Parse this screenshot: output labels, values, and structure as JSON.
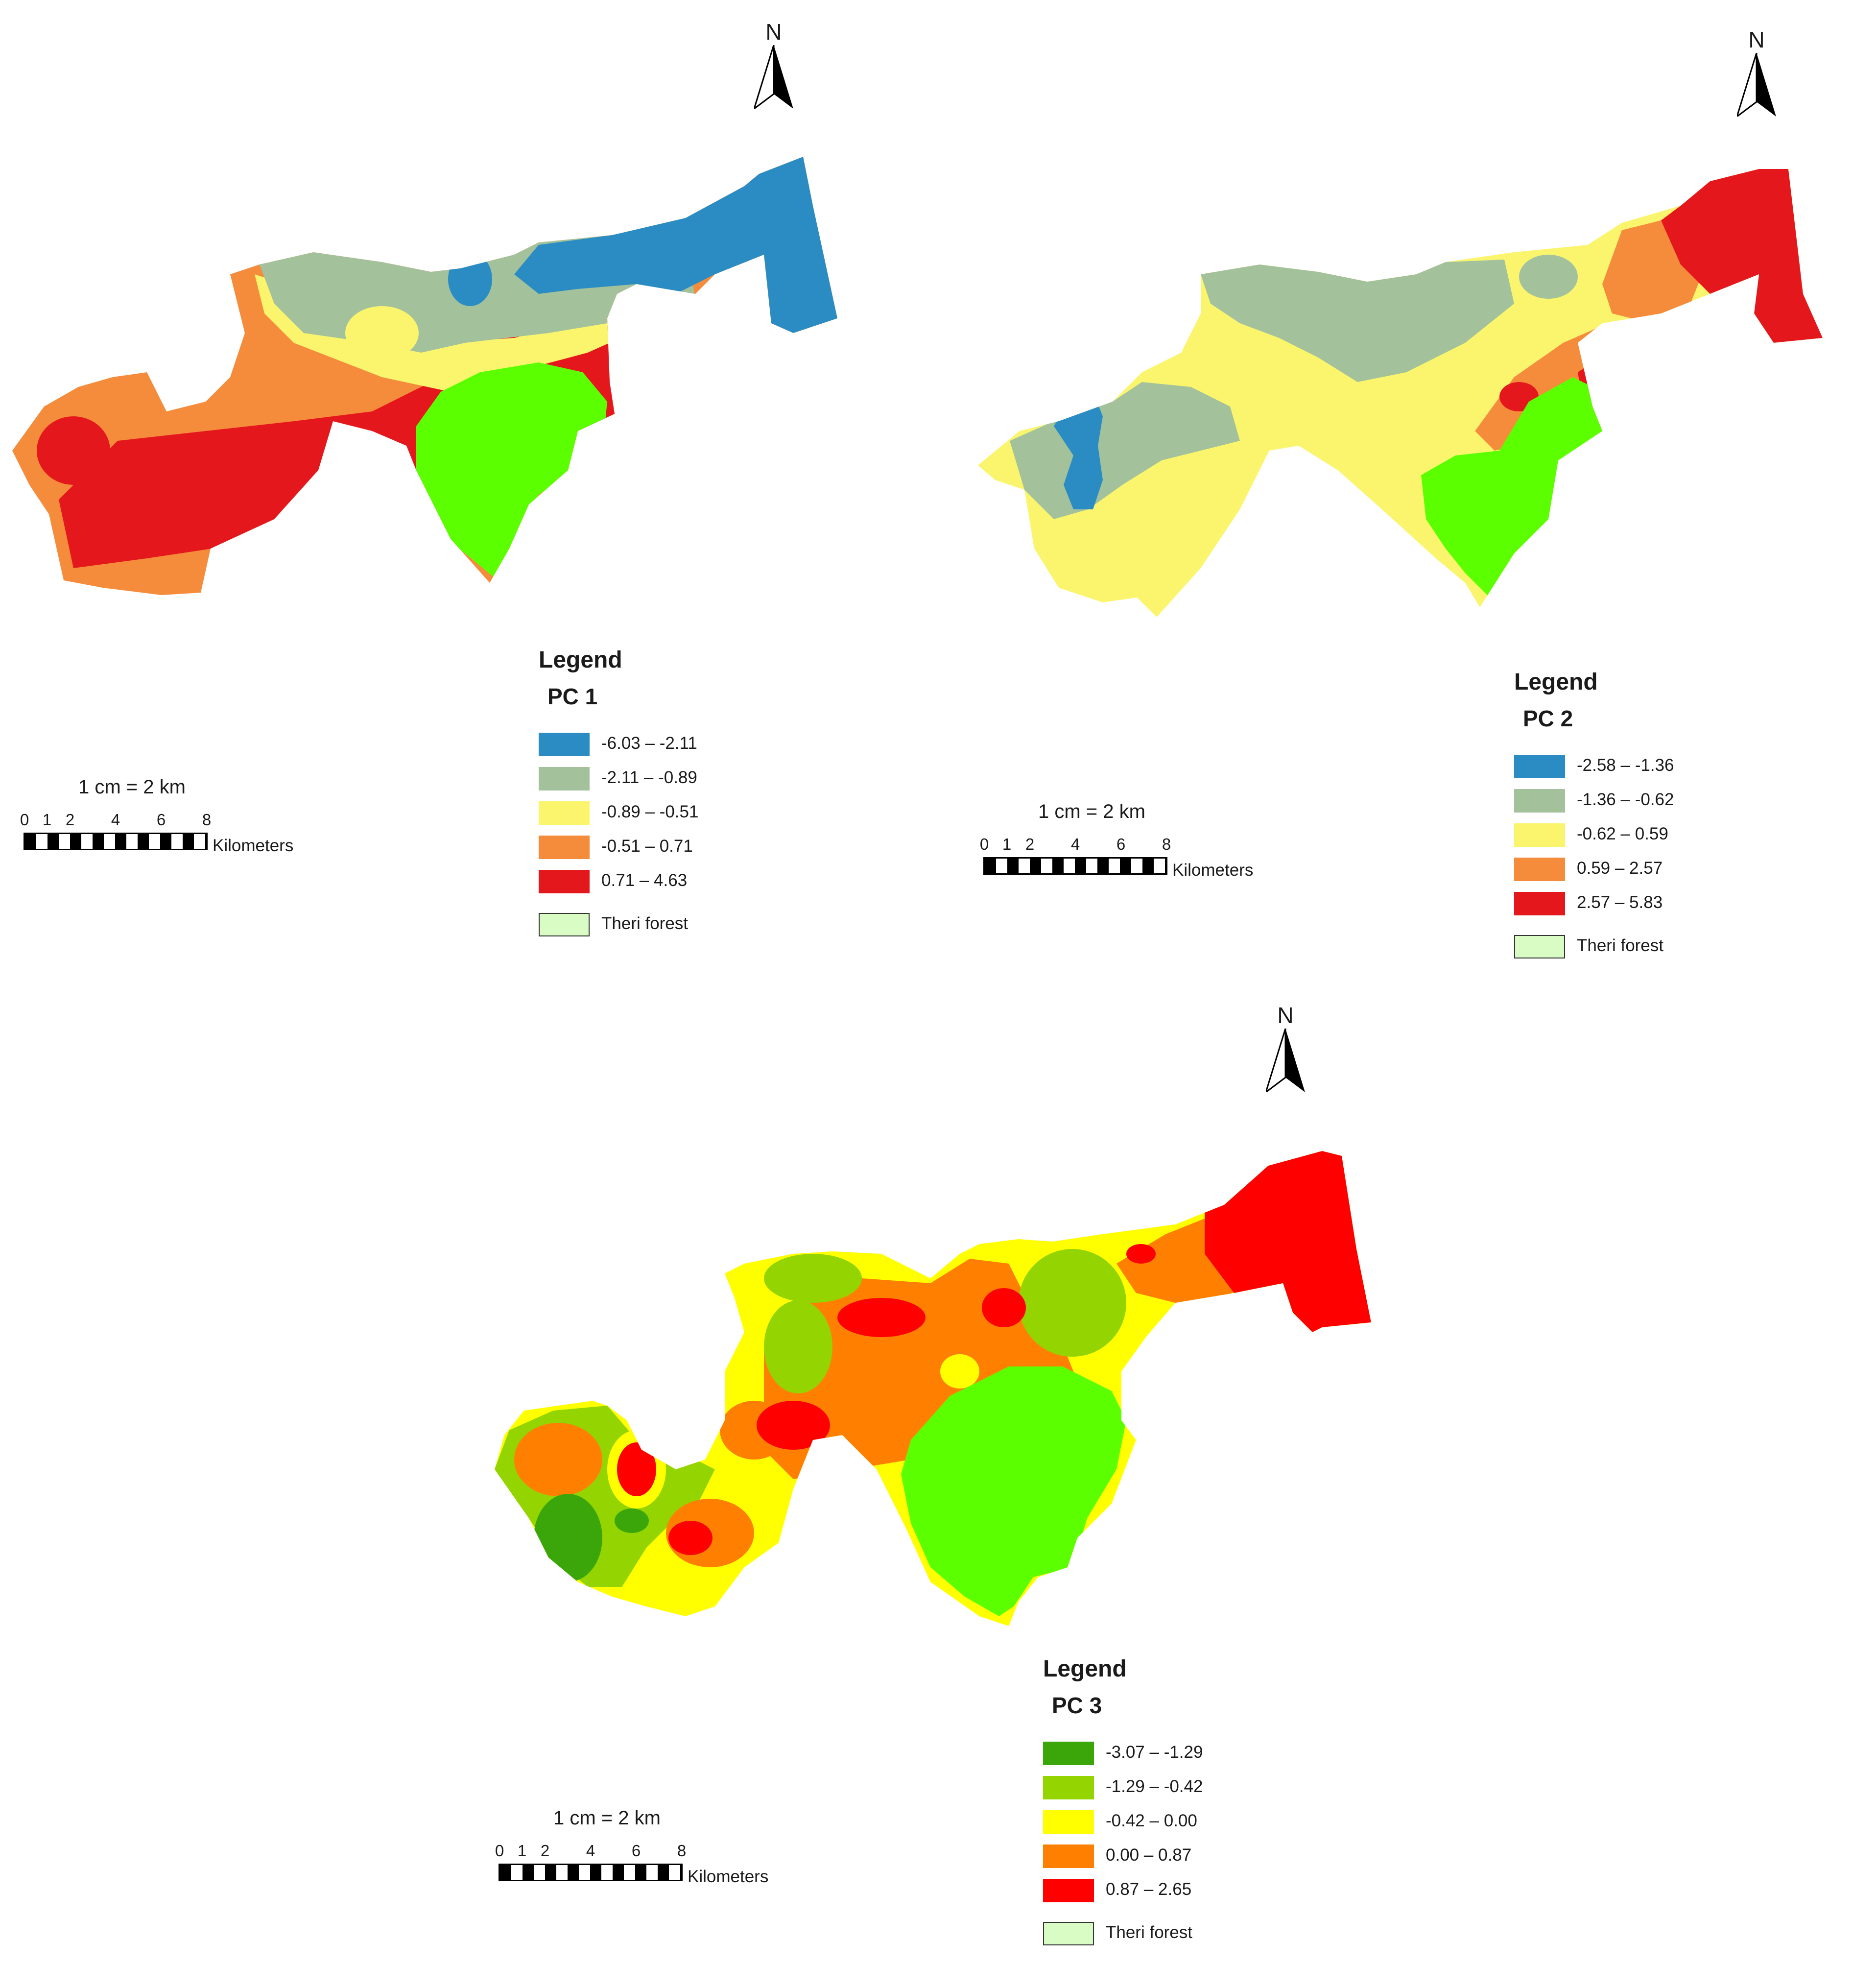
{
  "north_label": "N",
  "colors": {
    "forest_map": "#5cff00",
    "forest_swatch": "#d8fcc4"
  },
  "maps": [
    {
      "id": "pc1",
      "legend_title": "Legend",
      "layer_name": "PC 1",
      "classes": [
        {
          "label": "-6.03 – -2.11",
          "color": "#2b8cc4"
        },
        {
          "label": "-2.11 – -0.89",
          "color": "#a3c29c"
        },
        {
          "label": "-0.89 – -0.51",
          "color": "#fbf56e"
        },
        {
          "label": "-0.51 – 0.71",
          "color": "#f58c3c"
        },
        {
          "label": "0.71 – 4.63",
          "color": "#e4181c"
        }
      ],
      "forest_label": "Theri forest",
      "scale_ratio": "1 cm = 2 km",
      "scale_ticks": [
        "0",
        "1",
        "2",
        "4",
        "6",
        "8"
      ],
      "scale_units": "Kilometers"
    },
    {
      "id": "pc2",
      "legend_title": "Legend",
      "layer_name": "PC 2",
      "classes": [
        {
          "label": "-2.58 – -1.36",
          "color": "#2b8cc4"
        },
        {
          "label": "-1.36 – -0.62",
          "color": "#a3c29c"
        },
        {
          "label": "-0.62 – 0.59",
          "color": "#fbf56e"
        },
        {
          "label": "0.59 – 2.57",
          "color": "#f58c3c"
        },
        {
          "label": "2.57 – 5.83",
          "color": "#e4181c"
        }
      ],
      "forest_label": "Theri forest",
      "scale_ratio": "1 cm = 2 km",
      "scale_ticks": [
        "0",
        "1",
        "2",
        "4",
        "6",
        "8"
      ],
      "scale_units": "Kilometers"
    },
    {
      "id": "pc3",
      "legend_title": "Legend",
      "layer_name": "PC 3",
      "classes": [
        {
          "label": "-3.07 – -1.29",
          "color": "#3aa60a"
        },
        {
          "label": "-1.29 – -0.42",
          "color": "#94d400"
        },
        {
          "label": "-0.42 – 0.00",
          "color": "#ffff00"
        },
        {
          "label": "0.00 – 0.87",
          "color": "#ff8000"
        },
        {
          "label": "0.87 – 2.65",
          "color": "#ff0000"
        }
      ],
      "forest_label": "Theri forest",
      "scale_ratio": "1 cm = 2 km",
      "scale_ticks": [
        "0",
        "1",
        "2",
        "4",
        "6",
        "8"
      ],
      "scale_units": "Kilometers"
    }
  ]
}
